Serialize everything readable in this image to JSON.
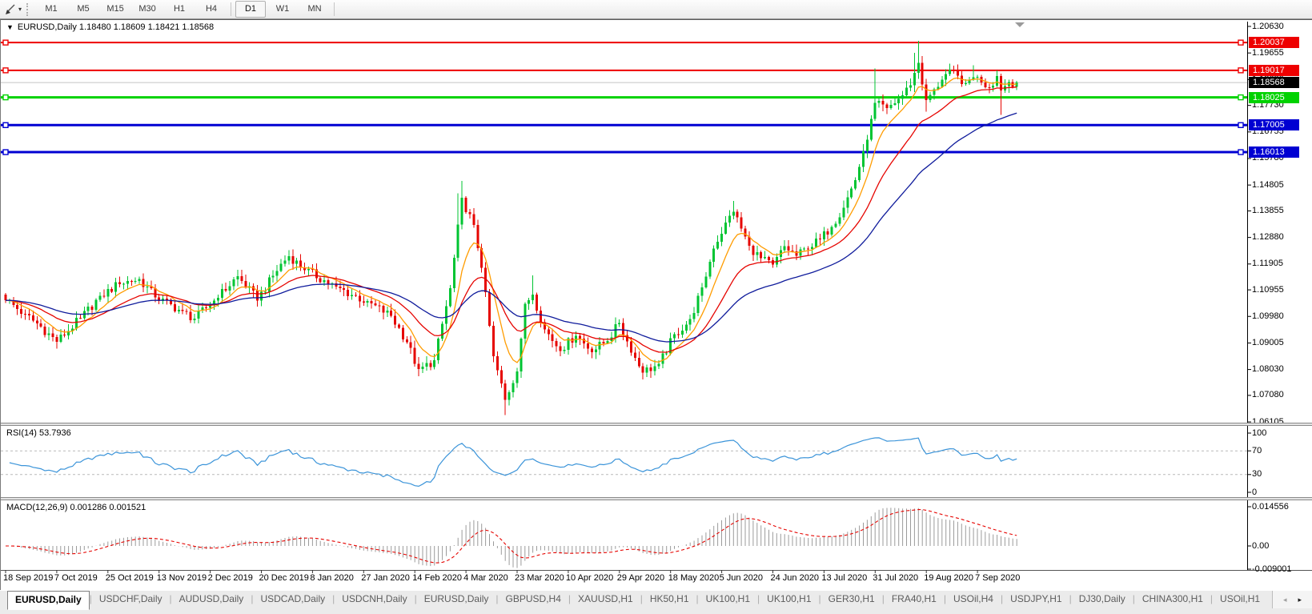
{
  "toolbar": {
    "tool_icon": "trendline-cursor-icon",
    "dropdown_icon": "chevron-down",
    "timeframes": [
      {
        "label": "M1",
        "active": false
      },
      {
        "label": "M5",
        "active": false
      },
      {
        "label": "M15",
        "active": false
      },
      {
        "label": "M30",
        "active": false
      },
      {
        "label": "H1",
        "active": false
      },
      {
        "label": "H4",
        "active": false
      },
      {
        "label": "D1",
        "active": true
      },
      {
        "label": "W1",
        "active": false
      },
      {
        "label": "MN",
        "active": false
      }
    ]
  },
  "chart": {
    "title": "EURUSD,Daily  1.18480 1.18609 1.18421 1.18568",
    "symbol": "EURUSD",
    "period": "Daily",
    "ohlc": {
      "open": "1.18480",
      "high": "1.18609",
      "low": "1.18421",
      "close": "1.18568"
    }
  },
  "indicators": {
    "rsi_label": "RSI(14) 53.7936",
    "macd_label": "MACD(12,26,9) 0.001286 0.001521"
  },
  "colors": {
    "candle_up": "#00c432",
    "candle_down": "#e60400",
    "ma_fast": "#ff9c00",
    "ma_medium": "#e60400",
    "ma_slow": "#101c9c",
    "level_red": "#ee0000",
    "level_green": "#00d200",
    "level_blue": "#0000d2",
    "current_price_line": "#c4c4c4",
    "current_price_badge": "#000000",
    "rsi_line": "#3b94d9",
    "rsi_levels": "#b8b8b8",
    "macd_hist": "#9b9b9b",
    "macd_signal": "#e60400",
    "axis_text": "#000000"
  },
  "chart_data": {
    "type": "candlestick",
    "symbol": "EURUSD",
    "timeframe": "Daily",
    "bar_count": 258,
    "price_axis_ticks": [
      "1.20630",
      "1.19655",
      "1.18680",
      "1.17730",
      "1.16755",
      "1.15780",
      "1.14805",
      "1.13855",
      "1.12880",
      "1.11905",
      "1.10955",
      "1.09980",
      "1.09005",
      "1.08030",
      "1.07080",
      "1.06105"
    ],
    "price_axis_top": 1.2063,
    "price_axis_bottom": 1.06105,
    "date_ticks": [
      "18 Sep 2019",
      "7 Oct 2019",
      "25 Oct 2019",
      "13 Nov 2019",
      "2 Dec 2019",
      "20 Dec 2019",
      "8 Jan 2020",
      "27 Jan 2020",
      "14 Feb 2020",
      "4 Mar 2020",
      "23 Mar 2020",
      "10 Apr 2020",
      "29 Apr 2020",
      "18 May 2020",
      "5 Jun 2020",
      "24 Jun 2020",
      "13 Jul 2020",
      "31 Jul 2020",
      "19 Aug 2020",
      "7 Sep 2020"
    ],
    "close_anchors": [
      [
        0,
        1.106
      ],
      [
        5,
        1.1005
      ],
      [
        9,
        1.096
      ],
      [
        13,
        1.0905
      ],
      [
        19,
        1.099
      ],
      [
        24,
        1.107
      ],
      [
        29,
        1.112
      ],
      [
        34,
        1.1135
      ],
      [
        38,
        1.107
      ],
      [
        45,
        1.1015
      ],
      [
        48,
        1.099
      ],
      [
        54,
        1.107
      ],
      [
        59,
        1.1145
      ],
      [
        64,
        1.106
      ],
      [
        70,
        1.119
      ],
      [
        72,
        1.122
      ],
      [
        76,
        1.117
      ],
      [
        84,
        1.1105
      ],
      [
        92,
        1.105
      ],
      [
        98,
        1.1
      ],
      [
        102,
        1.0905
      ],
      [
        105,
        1.08
      ],
      [
        109,
        1.0835
      ],
      [
        113,
        1.11
      ],
      [
        116,
        1.143
      ],
      [
        119,
        1.133
      ],
      [
        121,
        1.118
      ],
      [
        124,
        1.085
      ],
      [
        127,
        1.069
      ],
      [
        130,
        1.08
      ],
      [
        132,
        1.104
      ],
      [
        134,
        1.108
      ],
      [
        137,
        1.095
      ],
      [
        141,
        1.0875
      ],
      [
        145,
        1.093
      ],
      [
        149,
        1.087
      ],
      [
        153,
        1.091
      ],
      [
        156,
        1.0975
      ],
      [
        159,
        1.087
      ],
      [
        162,
        1.0795
      ],
      [
        166,
        1.082
      ],
      [
        170,
        1.093
      ],
      [
        174,
        1.0985
      ],
      [
        177,
        1.11
      ],
      [
        180,
        1.125
      ],
      [
        183,
        1.134
      ],
      [
        185,
        1.1385
      ],
      [
        189,
        1.1255
      ],
      [
        192,
        1.121
      ],
      [
        195,
        1.1185
      ],
      [
        198,
        1.1255
      ],
      [
        201,
        1.122
      ],
      [
        204,
        1.125
      ],
      [
        207,
        1.128
      ],
      [
        210,
        1.133
      ],
      [
        213,
        1.14
      ],
      [
        216,
        1.15
      ],
      [
        218,
        1.16
      ],
      [
        220,
        1.172
      ],
      [
        221,
        1.178
      ],
      [
        224,
        1.176
      ],
      [
        228,
        1.181
      ],
      [
        230,
        1.185
      ],
      [
        232,
        1.193
      ],
      [
        234,
        1.179
      ],
      [
        236,
        1.183
      ],
      [
        238,
        1.187
      ],
      [
        240,
        1.19
      ],
      [
        242,
        1.188
      ],
      [
        244,
        1.185
      ],
      [
        246,
        1.188
      ],
      [
        248,
        1.186
      ],
      [
        250,
        1.184
      ],
      [
        252,
        1.188
      ],
      [
        253,
        1.183
      ],
      [
        255,
        1.186
      ],
      [
        257,
        1.18568
      ]
    ],
    "wick_overrides": [
      [
        13,
        "l",
        1.0879
      ],
      [
        105,
        "l",
        1.0778
      ],
      [
        115,
        "h",
        1.145
      ],
      [
        116,
        "h",
        1.1495
      ],
      [
        126,
        "l",
        1.074
      ],
      [
        127,
        "l",
        1.0636
      ],
      [
        134,
        "h",
        1.1148
      ],
      [
        162,
        "l",
        1.0766
      ],
      [
        185,
        "h",
        1.1422
      ],
      [
        221,
        "h",
        1.1908
      ],
      [
        231,
        "h",
        1.1966
      ],
      [
        232,
        "h",
        1.201
      ],
      [
        234,
        "l",
        1.175
      ],
      [
        240,
        "h",
        1.1917
      ],
      [
        246,
        "h",
        1.192
      ],
      [
        253,
        "l",
        1.1738
      ]
    ],
    "levels": [
      {
        "label": "1.20037",
        "price": 1.20037,
        "color": "#ee0000",
        "width": 2,
        "kind": "resistance"
      },
      {
        "label": "1.19017",
        "price": 1.19017,
        "color": "#ee0000",
        "width": 2,
        "kind": "resistance"
      },
      {
        "label": "1.18025",
        "price": 1.18025,
        "color": "#00d200",
        "width": 3,
        "kind": "support"
      },
      {
        "label": "1.17005",
        "price": 1.17005,
        "color": "#0000d2",
        "width": 3,
        "kind": "support"
      },
      {
        "label": "1.16013",
        "price": 1.16013,
        "color": "#0000d2",
        "width": 3,
        "kind": "support"
      }
    ],
    "current_price": {
      "label": "1.18568",
      "value": 1.18568
    },
    "moving_averages": [
      {
        "name": "fast",
        "period": 8,
        "color": "#ff9c00"
      },
      {
        "name": "medium",
        "period": 21,
        "color": "#e60400"
      },
      {
        "name": "slow",
        "period": 45,
        "color": "#101c9c"
      }
    ],
    "rsi": {
      "period": 14,
      "current": 53.7936,
      "levels": [
        70,
        30
      ],
      "axis_ticks": [
        "100",
        "70",
        "30",
        "0"
      ],
      "range": [
        0,
        100
      ]
    },
    "macd": {
      "fast": 12,
      "slow": 26,
      "signal_period": 9,
      "current_main": 0.001286,
      "current_signal": 0.001521,
      "axis_ticks": [
        "0.014556",
        "0.00",
        "-0.009001"
      ],
      "axis_values": [
        0.014556,
        0.0,
        -0.009001
      ]
    }
  },
  "tabs": {
    "items": [
      {
        "label": "EURUSD,Daily",
        "active": true
      },
      {
        "label": "USDCHF,Daily",
        "active": false
      },
      {
        "label": "AUDUSD,Daily",
        "active": false
      },
      {
        "label": "USDCAD,Daily",
        "active": false
      },
      {
        "label": "USDCNH,Daily",
        "active": false
      },
      {
        "label": "EURUSD,Daily",
        "active": false
      },
      {
        "label": "GBPUSD,H4",
        "active": false
      },
      {
        "label": "XAUUSD,H1",
        "active": false
      },
      {
        "label": "HK50,H1",
        "active": false
      },
      {
        "label": "UK100,H1",
        "active": false
      },
      {
        "label": "UK100,H1",
        "active": false
      },
      {
        "label": "GER30,H1",
        "active": false
      },
      {
        "label": "FRA40,H1",
        "active": false
      },
      {
        "label": "USOil,H4",
        "active": false
      },
      {
        "label": "USDJPY,H1",
        "active": false
      },
      {
        "label": "DJ30,Daily",
        "active": false
      },
      {
        "label": "CHINA300,H1",
        "active": false
      },
      {
        "label": "USOil,H1",
        "active": false
      }
    ],
    "scroll_left": "◂",
    "scroll_right": "▸"
  }
}
